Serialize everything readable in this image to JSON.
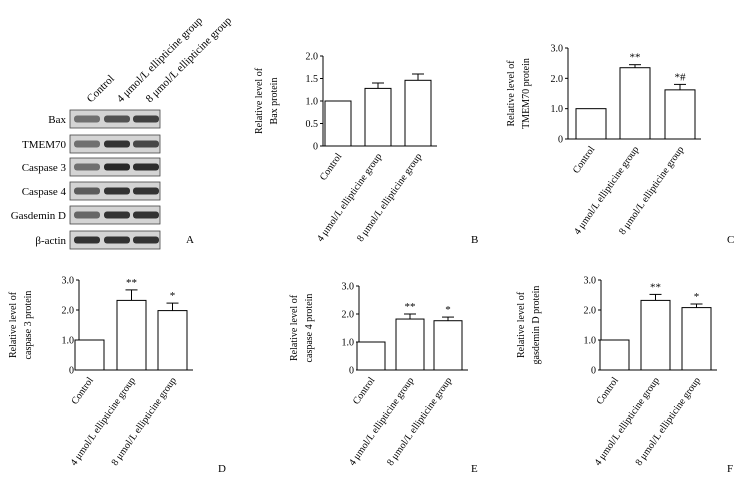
{
  "western_blot": {
    "panel_label": "A",
    "lane_labels": [
      "Control",
      "4 μmol/L ellipticine group",
      "8 μmol/L ellipticine group"
    ],
    "bands": [
      {
        "name": "Bax",
        "intensity": [
          0.55,
          0.7,
          0.78
        ]
      },
      {
        "name": "TMEM70",
        "intensity": [
          0.55,
          0.85,
          0.75
        ]
      },
      {
        "name": "Caspase 3",
        "intensity": [
          0.55,
          0.9,
          0.88
        ]
      },
      {
        "name": "Caspase 4",
        "intensity": [
          0.65,
          0.85,
          0.85
        ]
      },
      {
        "name": "Gasdemin D",
        "intensity": [
          0.6,
          0.85,
          0.85
        ]
      },
      {
        "name": "β-actin",
        "intensity": [
          0.85,
          0.85,
          0.85
        ]
      }
    ]
  },
  "chart_data": [
    {
      "id": "B",
      "type": "bar",
      "panel_label": "B",
      "ylabel": [
        "Relative level of",
        "Bax protein"
      ],
      "categories": [
        "Control",
        "4 μmol/L ellipticine group",
        "8 μmol/L ellipticine group"
      ],
      "values": [
        1.0,
        1.28,
        1.46
      ],
      "errors": [
        0,
        0.12,
        0.14
      ],
      "significance": [
        "",
        "",
        ""
      ],
      "ylim": [
        0,
        2.0
      ],
      "yticks": [
        "0",
        "0.5",
        "1.0",
        "1.5",
        "2.0"
      ]
    },
    {
      "id": "C",
      "type": "bar",
      "panel_label": "C",
      "ylabel": [
        "Relative level of",
        "TMEM70 protein"
      ],
      "categories": [
        "Control",
        "4 μmol/L ellipticine group",
        "8 μmol/L ellipticine group"
      ],
      "values": [
        1.0,
        2.35,
        1.62
      ],
      "errors": [
        0,
        0.1,
        0.18
      ],
      "significance": [
        "",
        "**",
        "*#"
      ],
      "ylim": [
        0,
        3.0
      ],
      "yticks": [
        "0",
        "1.0",
        "2.0",
        "3.0"
      ]
    },
    {
      "id": "D",
      "type": "bar",
      "panel_label": "D",
      "ylabel": [
        "Relative level of",
        "caspase 3 protein"
      ],
      "categories": [
        "Control",
        "4 μmol/L ellipticine group",
        "8 μmol/L ellipticine group"
      ],
      "values": [
        1.0,
        2.32,
        1.98
      ],
      "errors": [
        0,
        0.35,
        0.25
      ],
      "significance": [
        "",
        "**",
        "*"
      ],
      "ylim": [
        0,
        3.0
      ],
      "yticks": [
        "0",
        "1.0",
        "2.0",
        "3.0"
      ]
    },
    {
      "id": "E",
      "type": "bar",
      "panel_label": "E",
      "ylabel": [
        "Relative level of",
        "caspase 4 protein"
      ],
      "categories": [
        "Control",
        "4 μmol/L ellipticine group",
        "8 μmol/L ellipticine group"
      ],
      "values": [
        1.0,
        1.82,
        1.76
      ],
      "errors": [
        0,
        0.18,
        0.13
      ],
      "significance": [
        "",
        "**",
        "*"
      ],
      "ylim": [
        0,
        3.0
      ],
      "yticks": [
        "0",
        "1.0",
        "2.0",
        "3.0"
      ]
    },
    {
      "id": "F",
      "type": "bar",
      "panel_label": "F",
      "ylabel": [
        "Relative level of",
        "gasdemin D protein"
      ],
      "categories": [
        "Control",
        "4 μmol/L ellipticine group",
        "8 μmol/L ellipticine group"
      ],
      "values": [
        1.0,
        2.32,
        2.08
      ],
      "errors": [
        0,
        0.2,
        0.12
      ],
      "significance": [
        "",
        "**",
        "*"
      ],
      "ylim": [
        0,
        3.0
      ],
      "yticks": [
        "0",
        "1.0",
        "2.0",
        "3.0"
      ]
    }
  ]
}
